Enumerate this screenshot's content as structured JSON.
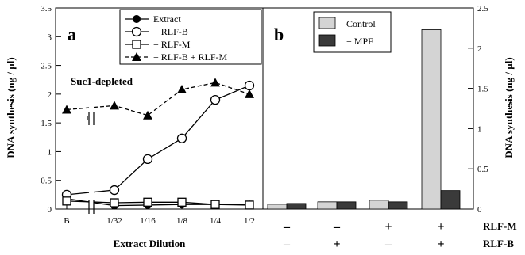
{
  "chart_data": [
    {
      "type": "line",
      "panel_label": "a",
      "ylabel": "DNA synthesis (ng / µl)",
      "xlabel": "Extract Dilution",
      "ylim": [
        0,
        3.5
      ],
      "yticks": [
        "0",
        "0.5",
        "1",
        "1.5",
        "2",
        "2.5",
        "3",
        "3.5"
      ],
      "ytick_values": [
        0,
        0.5,
        1,
        1.5,
        2,
        2.5,
        3,
        3.5
      ],
      "categories": [
        "B",
        "1/32",
        "1/16",
        "1/8",
        "1/4",
        "1/2"
      ],
      "annotation": "Suc1-depleted",
      "legend_placement": "top-right",
      "series": [
        {
          "name": "Extract",
          "marker": "filled-circle",
          "line": "solid",
          "values": [
            0.18,
            0.06,
            0.07,
            0.08,
            0.08,
            0.08
          ]
        },
        {
          "name": "+ RLF-B",
          "marker": "open-circle",
          "line": "solid",
          "values": [
            0.25,
            0.33,
            0.87,
            1.23,
            1.9,
            2.15
          ]
        },
        {
          "name": "+ RLF-M",
          "marker": "open-square",
          "line": "solid",
          "values": [
            0.14,
            0.11,
            0.12,
            0.12,
            0.08,
            0.07
          ]
        },
        {
          "name": "+ RLF-B + RLF-M",
          "marker": "filled-triangle",
          "line": "dashed",
          "values": [
            1.73,
            1.8,
            1.63,
            2.08,
            2.2,
            2.0
          ]
        }
      ]
    },
    {
      "type": "bar",
      "panel_label": "b",
      "ylabel": "DNA synthesis (ng / µl)",
      "ylim": [
        0,
        2.5
      ],
      "yticks": [
        "0",
        "0.5",
        "1",
        "1.5",
        "2",
        "2.5"
      ],
      "ytick_values": [
        0,
        0.5,
        1,
        1.5,
        2,
        2.5
      ],
      "legend_placement": "top-left",
      "row_labels": [
        "RLF-M",
        "RLF-B"
      ],
      "conditions": [
        {
          "rlf_m": "–",
          "rlf_b": "–"
        },
        {
          "rlf_m": "–",
          "rlf_b": "+"
        },
        {
          "rlf_m": "+",
          "rlf_b": "–"
        },
        {
          "rlf_m": "+",
          "rlf_b": "+"
        }
      ],
      "series": [
        {
          "name": "Control",
          "fill": "#d4d4d4",
          "values": [
            0.06,
            0.09,
            0.11,
            2.23
          ]
        },
        {
          "name": "+ MPF",
          "fill": "#3a3a3a",
          "values": [
            0.07,
            0.09,
            0.09,
            0.23
          ]
        }
      ]
    }
  ]
}
